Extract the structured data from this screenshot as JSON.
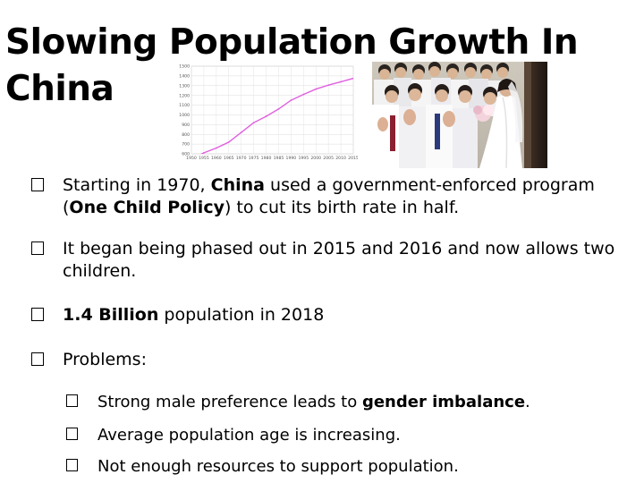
{
  "title": "Slowing Population Growth In China",
  "chart_data": {
    "type": "line",
    "title": "",
    "xlabel": "",
    "ylabel": "",
    "x": [
      1950,
      1955,
      1960,
      1965,
      1970,
      1975,
      1980,
      1985,
      1990,
      1995,
      2000,
      2005,
      2010,
      2015
    ],
    "x_tick_labels": [
      "1950",
      "1955",
      "1960",
      "1965",
      "1970",
      "1975",
      "1980",
      "1985",
      "1990",
      "1995",
      "2000",
      "2005",
      "2010",
      "2015"
    ],
    "series": [
      {
        "values": [
          550,
          610,
          660,
          720,
          820,
          920,
          985,
          1060,
          1150,
          1210,
          1265,
          1305,
          1340,
          1375
        ]
      }
    ],
    "y_tick_labels": [
      "1500",
      "1400",
      "1300",
      "1200",
      "1100",
      "1000",
      "900",
      "800",
      "700",
      "600"
    ],
    "ylim": [
      600,
      1500
    ],
    "grid": true,
    "line_color": "#e060e0"
  },
  "bullets": [
    {
      "segments": [
        {
          "text": "Starting in 1970, ",
          "bold": false
        },
        {
          "text": "China",
          "bold": true
        },
        {
          "text": " used a government-enforced program (",
          "bold": false
        },
        {
          "text": "One Child Policy",
          "bold": true
        },
        {
          "text": ") to cut its birth rate in half.",
          "bold": false
        }
      ]
    },
    {
      "segments": [
        {
          "text": "It began being phased out in 2015 and 2016 and now allows two children.",
          "bold": false
        }
      ]
    },
    {
      "segments": [
        {
          "text": "1.4 Billion",
          "bold": true
        },
        {
          "text": " population in 2018",
          "bold": false
        }
      ]
    },
    {
      "segments": [
        {
          "text": "Problems:",
          "bold": false
        }
      ]
    }
  ],
  "sub_bullets": [
    {
      "segments": [
        {
          "text": "Strong male preference leads to ",
          "bold": false
        },
        {
          "text": "gender imbalance",
          "bold": true
        },
        {
          "text": ".",
          "bold": false
        }
      ]
    },
    {
      "segments": [
        {
          "text": "Average population age is increasing.",
          "bold": false
        }
      ]
    },
    {
      "segments": [
        {
          "text": "Not enough resources to support population.",
          "bold": false
        }
      ]
    }
  ]
}
